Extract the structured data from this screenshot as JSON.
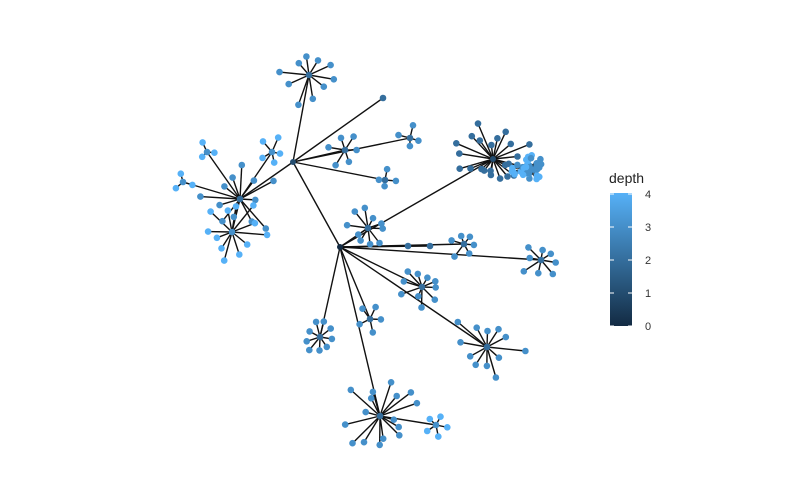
{
  "legend": {
    "title": "depth",
    "ticks": [
      "0",
      "1",
      "2",
      "3",
      "4"
    ],
    "color_low": "#132b43",
    "color_high": "#56b1f7"
  },
  "chart_data": {
    "type": "network",
    "color_variable": "depth",
    "depth_range": [
      0,
      4
    ]
  }
}
